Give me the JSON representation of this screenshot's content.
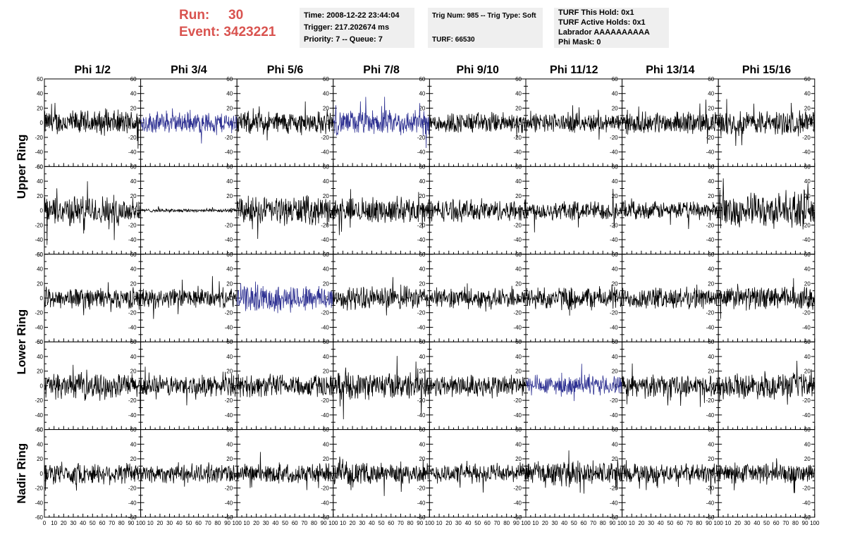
{
  "run": {
    "run_label": "Run:",
    "run_value": "30",
    "event_label": "Event:",
    "event_value": "3423221"
  },
  "info": {
    "box1": [
      "Time: 2008-12-22 23:44:04",
      "Trigger: 217.202674 ms",
      "Priority: 7 -- Queue: 7"
    ],
    "box2": [
      "Trig Num: 985 -- Trig Type: Soft",
      "",
      "TURF: 66530"
    ],
    "box3": [
      "TURF This Hold: 0x1",
      "TURF Active Holds: 0x1",
      "Labrador AAAAAAAAAA",
      "Phi Mask: 0"
    ]
  },
  "colors": {
    "trace_default": "#000000",
    "trace_highlight": "#2e3192",
    "run_text": "#d9534f",
    "info_bg": "#efefef"
  },
  "chart_data": {
    "type": "line",
    "columns": [
      "Phi 1/2",
      "Phi 3/4",
      "Phi 5/6",
      "Phi 7/8",
      "Phi 9/10",
      "Phi 11/12",
      "Phi 13/14",
      "Phi 15/16"
    ],
    "rows": [
      "Upper Ring",
      "Upper Ring",
      "Lower Ring",
      "Lower Ring",
      "Nadir Ring"
    ],
    "row_labels": [
      {
        "label": "Upper Ring",
        "rows": [
          0,
          1
        ]
      },
      {
        "label": "Lower Ring",
        "rows": [
          2,
          3
        ]
      },
      {
        "label": "Nadir Ring",
        "rows": [
          4
        ]
      }
    ],
    "xlim": [
      0,
      100
    ],
    "ylim": [
      -60,
      60
    ],
    "y_ticks": [
      "60",
      "40",
      "20",
      "0",
      "-20",
      "-40",
      "-60"
    ],
    "x_ticks_per_panel": [
      "0",
      "10",
      "20",
      "30",
      "40",
      "50",
      "60",
      "70",
      "80",
      "90",
      "100"
    ],
    "samples_per_trace": 256,
    "trace_x_end": 100,
    "panels": [
      [
        {
          "amp": 14,
          "hl": false
        },
        {
          "amp": 12,
          "hl": true
        },
        {
          "amp": 13,
          "hl": false
        },
        {
          "amp": 14,
          "hl": true
        },
        {
          "amp": 12,
          "hl": false
        },
        {
          "amp": 11,
          "hl": false
        },
        {
          "amp": 12,
          "hl": false
        },
        {
          "amp": 14,
          "hl": false
        }
      ],
      [
        {
          "amp": 17,
          "hl": false
        },
        {
          "amp": 2,
          "hl": false
        },
        {
          "amp": 16,
          "hl": false
        },
        {
          "amp": 14,
          "hl": false
        },
        {
          "amp": 12,
          "hl": false
        },
        {
          "amp": 11,
          "hl": false
        },
        {
          "amp": 10,
          "hl": false
        },
        {
          "amp": 19,
          "hl": false
        }
      ],
      [
        {
          "amp": 12,
          "hl": false
        },
        {
          "amp": 11,
          "hl": false
        },
        {
          "amp": 15,
          "hl": true
        },
        {
          "amp": 13,
          "hl": false
        },
        {
          "amp": 11,
          "hl": false
        },
        {
          "amp": 13,
          "hl": false
        },
        {
          "amp": 12,
          "hl": false
        },
        {
          "amp": 13,
          "hl": false
        }
      ],
      [
        {
          "amp": 14,
          "hl": false
        },
        {
          "amp": 12,
          "hl": false
        },
        {
          "amp": 13,
          "hl": false
        },
        {
          "amp": 15,
          "hl": false
        },
        {
          "amp": 13,
          "hl": false
        },
        {
          "amp": 11,
          "hl": true
        },
        {
          "amp": 12,
          "hl": false
        },
        {
          "amp": 14,
          "hl": false
        }
      ],
      [
        {
          "amp": 12,
          "hl": false
        },
        {
          "amp": 11,
          "hl": false
        },
        {
          "amp": 11,
          "hl": false
        },
        {
          "amp": 12,
          "hl": false
        },
        {
          "amp": 11,
          "hl": false
        },
        {
          "amp": 14,
          "hl": false
        },
        {
          "amp": 11,
          "hl": false
        },
        {
          "amp": 12,
          "hl": false
        }
      ]
    ]
  }
}
